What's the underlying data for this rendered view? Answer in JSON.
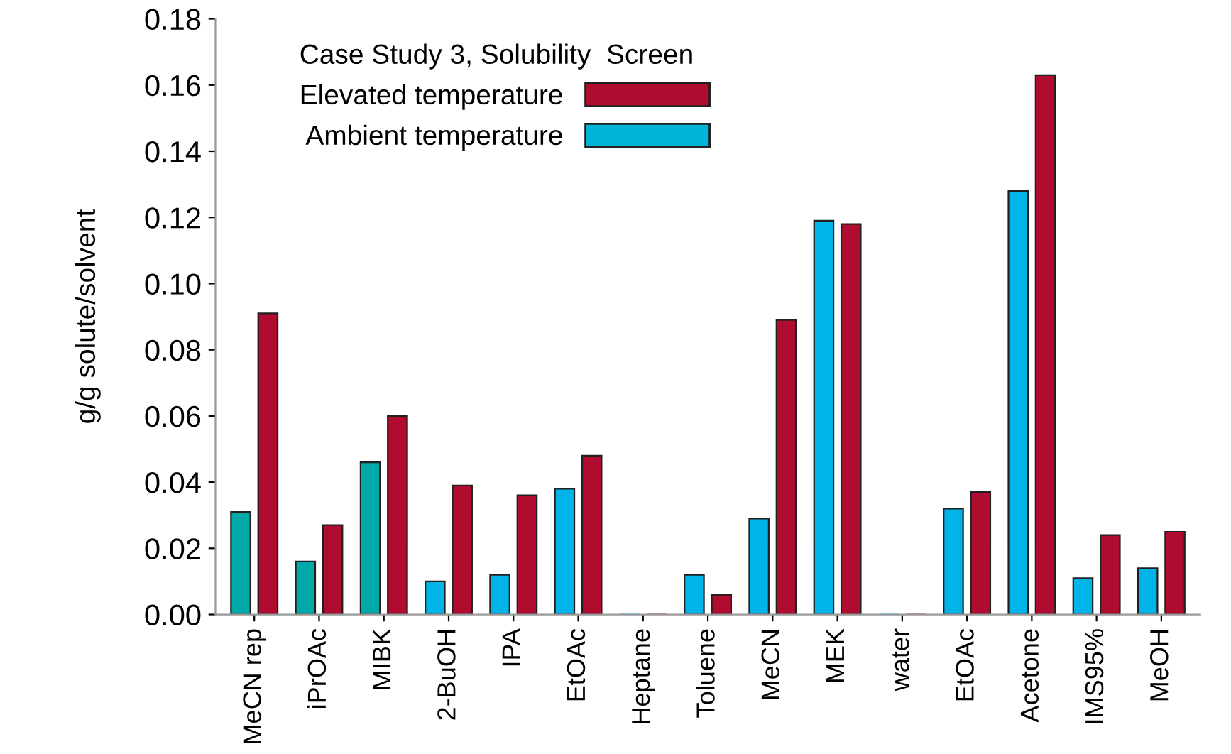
{
  "chart_data": {
    "type": "bar",
    "ylabel": "g/g solute/solvent",
    "legend_title": "Case Study 3, Solubility  Screen",
    "categories": [
      "MeCN rep",
      "iPrOAc",
      "MIBK",
      "2-BuOH",
      "IPA",
      "EtOAc",
      "Heptane",
      "Toluene",
      "MeCN",
      "MEK",
      "water",
      "EtOAc",
      "Acetone",
      "IMS95%",
      "MeOH"
    ],
    "series": [
      {
        "name": "Ambient temperature",
        "color": "#00b4d8",
        "colors": [
          "#00a8a8",
          "#00a8a8",
          "#00a8a8",
          "#00b4e8",
          "#00b4e8",
          "#00b4e8",
          "#00b4e8",
          "#00b4e8",
          "#00b4e8",
          "#00b4e8",
          "#00b4e8",
          "#00b4e8",
          "#00b4e8",
          "#00b4e8",
          "#00b4e8"
        ],
        "values": [
          0.031,
          0.016,
          0.046,
          0.01,
          0.012,
          0.038,
          0.0,
          0.012,
          0.029,
          0.119,
          0.0,
          0.032,
          0.128,
          0.011,
          0.014
        ]
      },
      {
        "name": "Elevated temperature",
        "color": "#b00c30",
        "values": [
          0.091,
          0.027,
          0.06,
          0.039,
          0.036,
          0.048,
          0.0,
          0.006,
          0.089,
          0.118,
          0.0,
          0.037,
          0.163,
          0.024,
          0.025
        ]
      }
    ],
    "ylim": [
      0,
      0.18
    ],
    "yticks": [
      {
        "value": 0,
        "label": "0.00"
      },
      {
        "value": 0.02,
        "label": "0.02"
      },
      {
        "value": 0.04,
        "label": "0.04"
      },
      {
        "value": 0.06,
        "label": "0.06"
      },
      {
        "value": 0.08,
        "label": "0.08"
      },
      {
        "value": 0.1,
        "label": "0.10"
      },
      {
        "value": 0.12,
        "label": "0.12"
      },
      {
        "value": 0.14,
        "label": "0.14"
      },
      {
        "value": 0.16,
        "label": "0.16"
      },
      {
        "value": 0.18,
        "label": "0.18"
      }
    ],
    "legend": "top left",
    "grid": false
  }
}
